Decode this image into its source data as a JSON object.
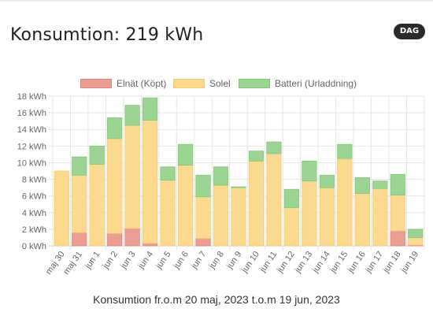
{
  "header": {
    "title": "Konsumtion: 219 kWh",
    "badge": "DAG"
  },
  "footer": {
    "caption": "Konsumtion fr.o.m 20 maj, 2023 t.o.m 19 jun, 2023"
  },
  "chart_data": {
    "type": "bar",
    "stacked": true,
    "categories": [
      "maj 30",
      "maj 31",
      "jun 1",
      "jun 2",
      "jun 3",
      "jun 4",
      "jun 5",
      "jun 6",
      "jun 7",
      "jun 8",
      "jun 9",
      "jun 10",
      "jun 11",
      "jun 12",
      "jun 13",
      "jun 14",
      "jun 15",
      "jun 16",
      "jun 17",
      "jun 18",
      "jun 19"
    ],
    "series": [
      {
        "name": "Elnät (Köpt)",
        "color": "#ec9d93",
        "border": "#e58678",
        "values": [
          0,
          1.6,
          0,
          1.5,
          2.1,
          0.3,
          0,
          0,
          0.9,
          0,
          0,
          0,
          0,
          0,
          0,
          0,
          0,
          0,
          0,
          1.8,
          0.1
        ]
      },
      {
        "name": "Solel",
        "color": "#fbd98f",
        "border": "#f6cd72",
        "values": [
          9.0,
          6.9,
          9.8,
          11.4,
          12.4,
          14.8,
          7.9,
          9.7,
          5.0,
          7.3,
          7.0,
          10.2,
          11.1,
          4.6,
          7.8,
          7.0,
          10.5,
          6.3,
          6.9,
          4.3,
          0.9
        ]
      },
      {
        "name": "Batteri (Urladdning)",
        "color": "#9bd493",
        "border": "#82c879",
        "values": [
          0,
          2.2,
          2.2,
          2.5,
          2.4,
          2.7,
          1.6,
          2.5,
          2.6,
          2.2,
          0.1,
          1.2,
          1.4,
          2.2,
          2.4,
          1.5,
          1.7,
          1.9,
          0.9,
          2.5,
          1.0
        ]
      }
    ],
    "y_ticks": [
      "0 kWh",
      "2 kWh",
      "4 kWh",
      "6 kWh",
      "8 kWh",
      "10 kWh",
      "12 kWh",
      "14 kWh",
      "16 kWh",
      "18 kWh"
    ],
    "ylim": [
      0,
      18
    ],
    "ystep": 2,
    "grid": true,
    "legend_position": "top"
  }
}
